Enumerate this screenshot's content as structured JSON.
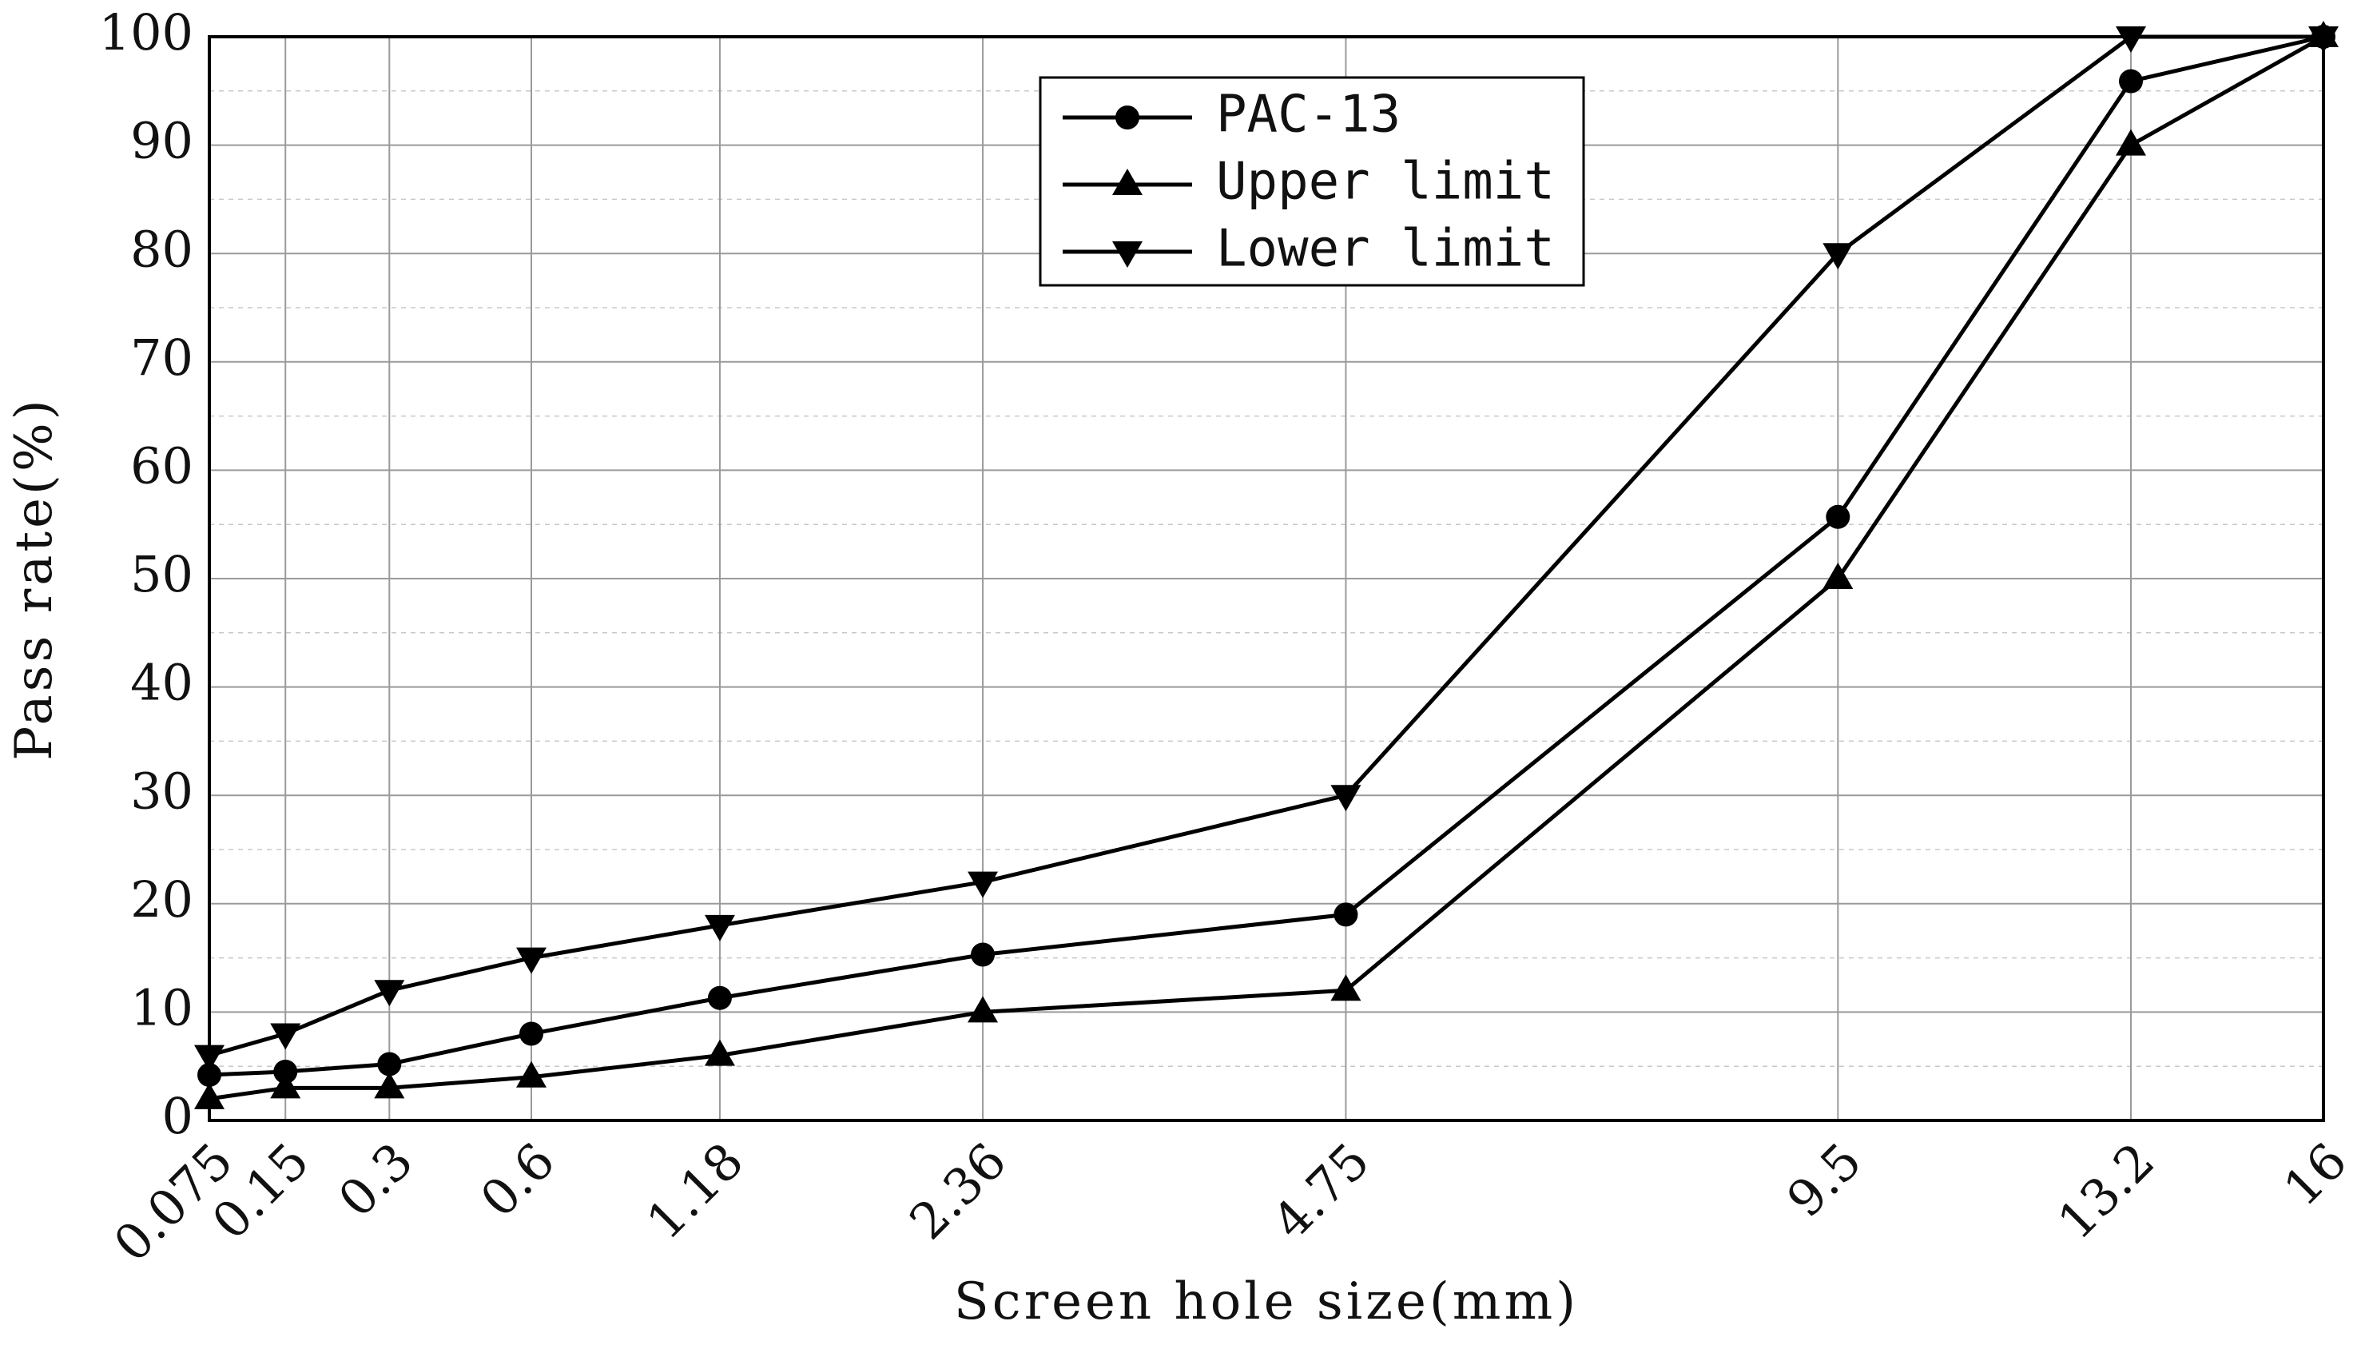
{
  "chart_data": {
    "type": "line",
    "xlabel": "Screen hole size(mm)",
    "ylabel": "Pass rate(%)",
    "ylim": [
      0,
      100
    ],
    "yticks": [
      "0",
      "10",
      "20",
      "30",
      "40",
      "50",
      "60",
      "70",
      "80",
      "90",
      "100"
    ],
    "categories": [
      "0.075",
      "0.15",
      "0.3",
      "0.6",
      "1.18",
      "2.36",
      "4.75",
      "9.5",
      "13.2",
      "16"
    ],
    "x_values": [
      0.075,
      0.15,
      0.3,
      0.6,
      1.18,
      2.36,
      4.75,
      9.5,
      13.2,
      16
    ],
    "x_scale": "power-0.45",
    "grid": true,
    "legend_position": "top-center",
    "series": [
      {
        "name": "PAC-13",
        "marker": "circle",
        "values": [
          4.2,
          4.5,
          5.2,
          8.0,
          11.3,
          15.3,
          19.0,
          55.7,
          95.9,
          100
        ]
      },
      {
        "name": "Upper limit",
        "marker": "triangle-up",
        "values": [
          2,
          3,
          3,
          4,
          6,
          10,
          12,
          50,
          90,
          100
        ]
      },
      {
        "name": "Lower limit",
        "marker": "triangle-down",
        "values": [
          6,
          8,
          12,
          15,
          18,
          22,
          30,
          80,
          100,
          100
        ]
      }
    ]
  }
}
